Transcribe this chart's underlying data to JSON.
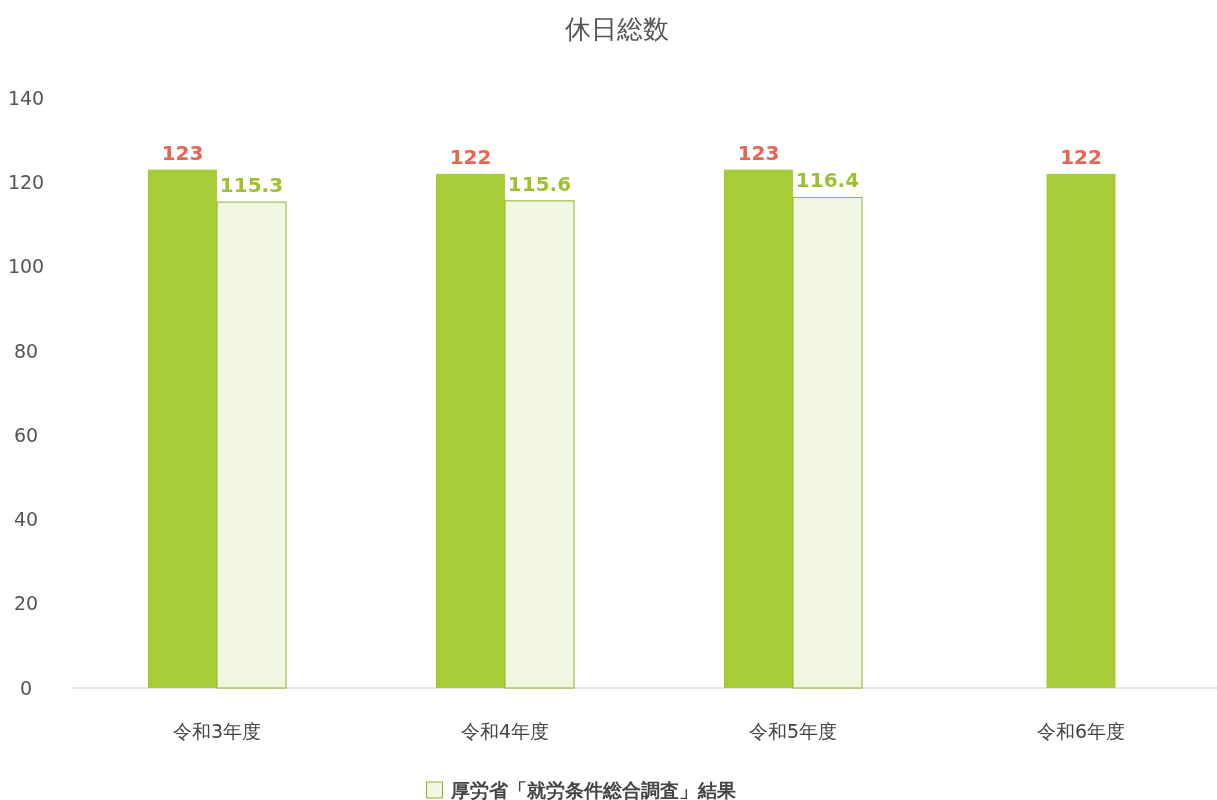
{
  "chart_data": {
    "type": "bar",
    "title": "休日総数",
    "categories": [
      "令和3年度",
      "令和4年度",
      "令和5年度",
      "令和6年度"
    ],
    "series": [
      {
        "color": "#a6cd38",
        "values": [
          123,
          122,
          123,
          122
        ]
      },
      {
        "name": "厚労省「就労条件総合調査」結果",
        "color": "#f1f6e0",
        "values": [
          115.3,
          115.6,
          116.4,
          null
        ]
      }
    ],
    "ylim": [
      0,
      140
    ],
    "yticks": [
      0,
      20,
      40,
      60,
      80,
      100,
      120,
      140
    ],
    "grid": false,
    "data_labels": true,
    "legend": "bottom"
  }
}
